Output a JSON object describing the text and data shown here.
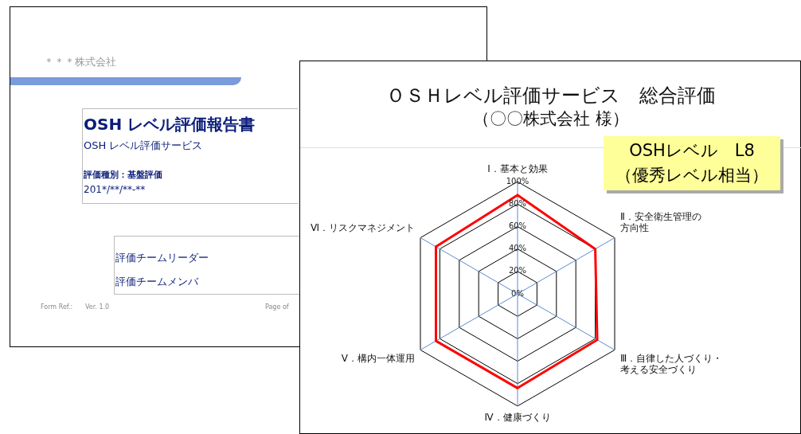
{
  "chart_data": {
    "type": "radar",
    "title": "ＯＳＨレベル評価サービス　総合評価",
    "subtitle": "（〇〇株式会社 様）",
    "categories": [
      "Ⅰ．基本と効果",
      "Ⅱ．安全衛生管理の方向性",
      "Ⅲ．自律した人づくり・考える安全づくり",
      "Ⅳ．健康づくり",
      "Ⅴ．構内一体運用",
      "Ⅵ．リスクマネジメント"
    ],
    "series": [
      {
        "color": "#ff0000",
        "values": [
          88,
          80,
          82,
          84,
          84,
          84
        ]
      }
    ],
    "ylim": [
      0,
      100
    ],
    "yticks": [
      {
        "value": 0,
        "label": "0%"
      },
      {
        "value": 20,
        "label": "20%"
      },
      {
        "value": 40,
        "label": "40%"
      },
      {
        "value": 60,
        "label": "60%"
      },
      {
        "value": 80,
        "label": "80%"
      },
      {
        "value": 100,
        "label": "100%"
      }
    ],
    "grid": true,
    "legend": false,
    "marker": "none",
    "line_style": "solid",
    "annotations": [
      "OSHレベル　L8",
      "（優秀レベル相当）",
      "＊＊＊株式会社",
      "OSH レベル評価報告書",
      "OSH レベル評価サービス",
      "評価種別：基盤評価",
      "201*/**/**-**",
      "評価チームリーダー",
      "評価チームメンバ",
      "Form Ref.:",
      "Ver. 1.0",
      "Page of"
    ]
  }
}
